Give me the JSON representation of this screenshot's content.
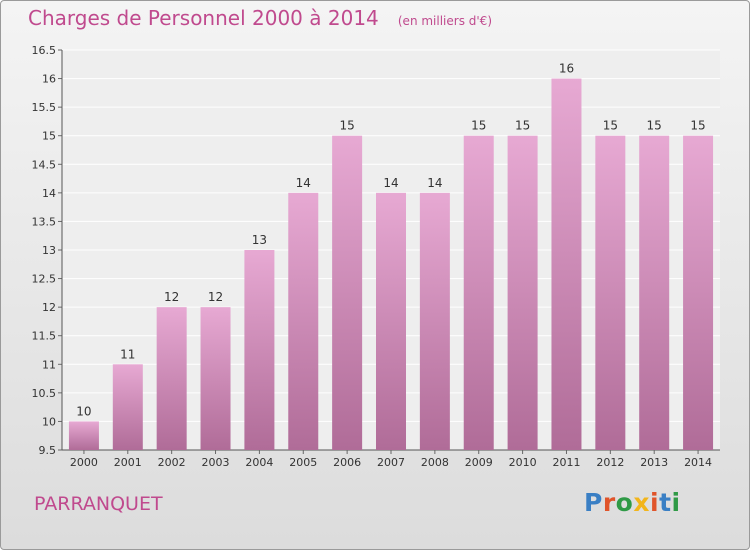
{
  "header": {
    "title": "Charges de Personnel 2000 à 2014",
    "subtitle": "(en milliers d'€)"
  },
  "footer": {
    "place": "PARRANQUET",
    "logo_text": "Proxiti"
  },
  "colors": {
    "accent": "#c04a8e",
    "bar_top": "#e7a9d3",
    "bar_bottom": "#b06c98",
    "logo_letters": [
      "#3a7fc4",
      "#e0542a",
      "#2f9a46",
      "#f2b51b",
      "#e0542a",
      "#3a7fc4",
      "#2f9a46"
    ]
  },
  "chart_data": {
    "type": "bar",
    "title": "Charges de Personnel 2000 à 2014",
    "subtitle": "(en milliers d'€)",
    "categories": [
      "2000",
      "2001",
      "2002",
      "2003",
      "2004",
      "2005",
      "2006",
      "2007",
      "2008",
      "2009",
      "2010",
      "2011",
      "2012",
      "2013",
      "2014"
    ],
    "values": [
      10,
      11,
      12,
      12,
      13,
      14,
      15,
      14,
      14,
      15,
      15,
      16,
      15,
      15,
      15
    ],
    "data_labels": [
      "10",
      "11",
      "12",
      "12",
      "13",
      "14",
      "15",
      "14",
      "14",
      "15",
      "15",
      "16",
      "15",
      "15",
      "15"
    ],
    "ylim": [
      9.5,
      16.5
    ],
    "yticks": [
      "9.5",
      "10",
      "10.5",
      "11",
      "11.5",
      "12",
      "12.5",
      "13",
      "13.5",
      "14",
      "14.5",
      "15",
      "15.5",
      "16",
      "16.5"
    ],
    "grid": true,
    "legend": "none"
  }
}
